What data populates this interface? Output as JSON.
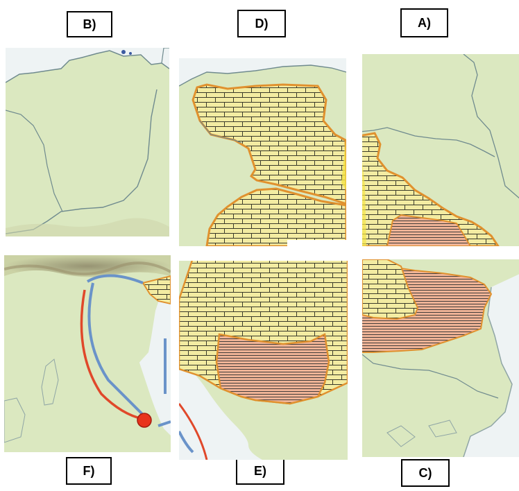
{
  "labels": {
    "b": "B)",
    "d": "D)",
    "a": "A)",
    "f": "F)",
    "e": "E)",
    "c": "C)"
  },
  "colors": {
    "land": "#dbe8c0",
    "sea": "#eef3f4",
    "border_line": "#6f8a8e",
    "empire_outline": "#e0912e",
    "brick_fill": "#f3eca2",
    "hatch_fill": "#f0b497",
    "route_red": "#e0482a",
    "route_blue": "#6a93c9",
    "mountain": "#b6a680"
  }
}
